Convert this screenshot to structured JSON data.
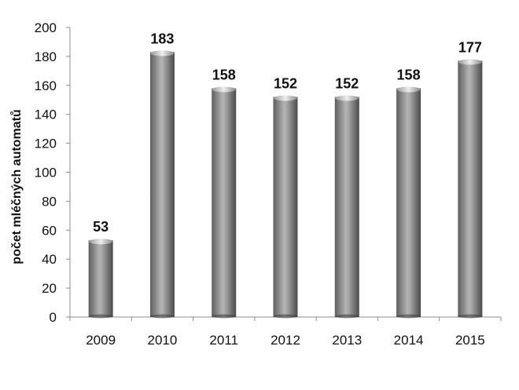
{
  "chart_data": {
    "type": "bar",
    "categories": [
      "2009",
      "2010",
      "2011",
      "2012",
      "2013",
      "2014",
      "2015"
    ],
    "values": [
      53,
      183,
      158,
      152,
      152,
      158,
      177
    ],
    "data_labels": [
      "53",
      "183",
      "158",
      "152",
      "152",
      "158",
      "177"
    ],
    "title": "",
    "xlabel": "",
    "ylabel": "počet mléčných automatů",
    "ylim": [
      0,
      200
    ],
    "yticks": [
      "0",
      "20",
      "40",
      "60",
      "80",
      "100",
      "120",
      "140",
      "160",
      "180",
      "200"
    ],
    "grid": false,
    "legend": "none",
    "colors": {
      "bar_dark": "#5e5e5e",
      "bar_mid": "#b4b4b4",
      "bar_light": "#eeeeee",
      "axis": "#8c8c8c"
    }
  }
}
